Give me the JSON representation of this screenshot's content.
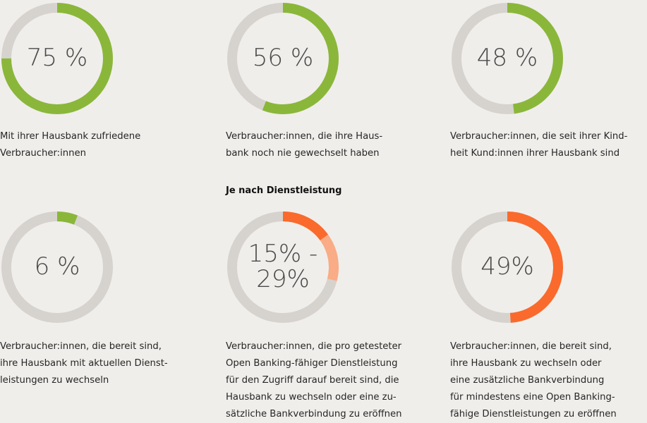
{
  "section_title": "Je nach Dienstleistung",
  "colors": {
    "track": "#d6d3cf",
    "green": "#8ab73a",
    "orange": "#fa6a2c",
    "orange_light": "#f9ac86",
    "background": "#f0eeeb"
  },
  "chart_data": [
    {
      "type": "pie",
      "subtype": "donut",
      "label": "75 %",
      "values": [
        75
      ],
      "color": "green",
      "caption": [
        "Mit ihrer Hausbank zufriedene",
        "Verbraucher:innen"
      ]
    },
    {
      "type": "pie",
      "subtype": "donut",
      "label": "56 %",
      "values": [
        56
      ],
      "color": "green",
      "caption": [
        "Verbraucher:innen, die ihre Haus-",
        "bank noch nie gewechselt haben"
      ]
    },
    {
      "type": "pie",
      "subtype": "donut",
      "label": "48 %",
      "values": [
        48
      ],
      "color": "green",
      "caption": [
        "Verbraucher:innen, die seit ihrer Kind-",
        "heit Kund:innen ihrer Hausbank sind"
      ]
    },
    {
      "type": "pie",
      "subtype": "donut",
      "label": "6 %",
      "values": [
        6
      ],
      "color": "green",
      "caption": [
        "Verbraucher:innen, die bereit sind,",
        "ihre Hausbank mit aktuellen Dienst-",
        "leistungen zu wechseln"
      ]
    },
    {
      "type": "pie",
      "subtype": "donut-range",
      "label_lines": [
        "15% -",
        "29%"
      ],
      "values": [
        15,
        29
      ],
      "color": "orange",
      "caption": [
        "Verbraucher:innen, die pro getesteter",
        "Open Banking-fähiger Dienstleistung",
        "für den Zugriff darauf bereit sind, die",
        "Hausbank zu wechseln oder eine zu-",
        "sätzliche Bankverbindung zu eröffnen"
      ]
    },
    {
      "type": "pie",
      "subtype": "donut",
      "label": "49%",
      "values": [
        49
      ],
      "color": "orange",
      "caption": [
        "Verbraucher:innen, die bereit sind,",
        "ihre Hausbank zu wechseln oder",
        "eine zusätzliche Bankverbindung",
        "für mindestens eine Open Banking-",
        "fähige Dienstleistungen zu eröffnen"
      ]
    }
  ]
}
